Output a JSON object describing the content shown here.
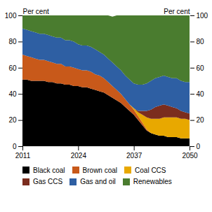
{
  "chart_data": {
    "type": "area",
    "stacked": true,
    "x": [
      2011,
      2012,
      2013,
      2014,
      2015,
      2016,
      2017,
      2018,
      2019,
      2020,
      2021,
      2022,
      2023,
      2024,
      2025,
      2026,
      2027,
      2028,
      2029,
      2030,
      2031,
      2032,
      2033,
      2034,
      2035,
      2036,
      2037,
      2038,
      2039,
      2040,
      2041,
      2042,
      2043,
      2044,
      2045,
      2046,
      2047,
      2048,
      2049,
      2050
    ],
    "series": [
      {
        "name": "Black coal",
        "color": "#000000",
        "values": [
          51,
          51,
          50,
          50,
          50,
          50,
          49,
          49,
          48,
          48,
          47,
          47,
          46,
          46,
          45,
          45,
          44,
          43,
          42,
          41,
          39,
          37,
          35,
          33,
          30,
          27,
          24,
          20,
          16,
          12,
          10,
          9,
          8,
          8,
          7,
          7,
          7,
          6,
          6,
          6
        ]
      },
      {
        "name": "Brown coal",
        "color": "#c8591a",
        "values": [
          19,
          18,
          18,
          17,
          16,
          16,
          16,
          15,
          15,
          15,
          14,
          14,
          14,
          13,
          13,
          13,
          13,
          12,
          12,
          11,
          10,
          9,
          8,
          7,
          6,
          5,
          4,
          3,
          2,
          1,
          0,
          0,
          0,
          0,
          0,
          0,
          0,
          0,
          0,
          0
        ]
      },
      {
        "name": "Coal CCS",
        "color": "#e8a800",
        "values": [
          0,
          0,
          0,
          0,
          0,
          0,
          0,
          0,
          0,
          0,
          0,
          0,
          0,
          0,
          0,
          0,
          0,
          0,
          0,
          0,
          0,
          0,
          0,
          0,
          0,
          0,
          1,
          3,
          6,
          9,
          11,
          12,
          13,
          14,
          15,
          15,
          15,
          15,
          15,
          14
        ]
      },
      {
        "name": "Gas CCS",
        "color": "#7b2d1e",
        "values": [
          0,
          0,
          0,
          0,
          0,
          0,
          0,
          0,
          0,
          0,
          0,
          0,
          0,
          0,
          0,
          0,
          0,
          0,
          0,
          0,
          0,
          0,
          0,
          0,
          0,
          0,
          0,
          1,
          3,
          5,
          7,
          9,
          10,
          10,
          9,
          8,
          7,
          6,
          5,
          5
        ]
      },
      {
        "name": "Gas and oil",
        "color": "#2e5fa3",
        "values": [
          20,
          20,
          20,
          20,
          20,
          20,
          20,
          20,
          20,
          20,
          20,
          20,
          20,
          19,
          19,
          19,
          19,
          19,
          18,
          18,
          18,
          18,
          18,
          18,
          18,
          19,
          19,
          20,
          20,
          21,
          22,
          22,
          22,
          22,
          22,
          22,
          23,
          23,
          23,
          24
        ]
      },
      {
        "name": "Renewables",
        "color": "#4a7c2f",
        "values": [
          10,
          11,
          12,
          13,
          14,
          14,
          15,
          16,
          17,
          17,
          19,
          19,
          20,
          22,
          23,
          23,
          24,
          26,
          28,
          30,
          33,
          35,
          39,
          42,
          46,
          49,
          52,
          53,
          53,
          52,
          50,
          48,
          47,
          46,
          47,
          48,
          48,
          50,
          51,
          51
        ]
      }
    ],
    "ylabel": "Per cent",
    "y2label": "Per cent",
    "xlim": [
      2011,
      2050
    ],
    "xticks": [
      2011,
      2024,
      2037,
      2050
    ],
    "ylim": [
      0,
      100
    ],
    "yticks": [
      0,
      20,
      40,
      60,
      80,
      100
    ],
    "y2lim": [
      0,
      100
    ],
    "y2ticks": [
      0,
      20,
      40,
      60,
      80,
      100
    ],
    "grid": false,
    "legend": "bottom"
  }
}
